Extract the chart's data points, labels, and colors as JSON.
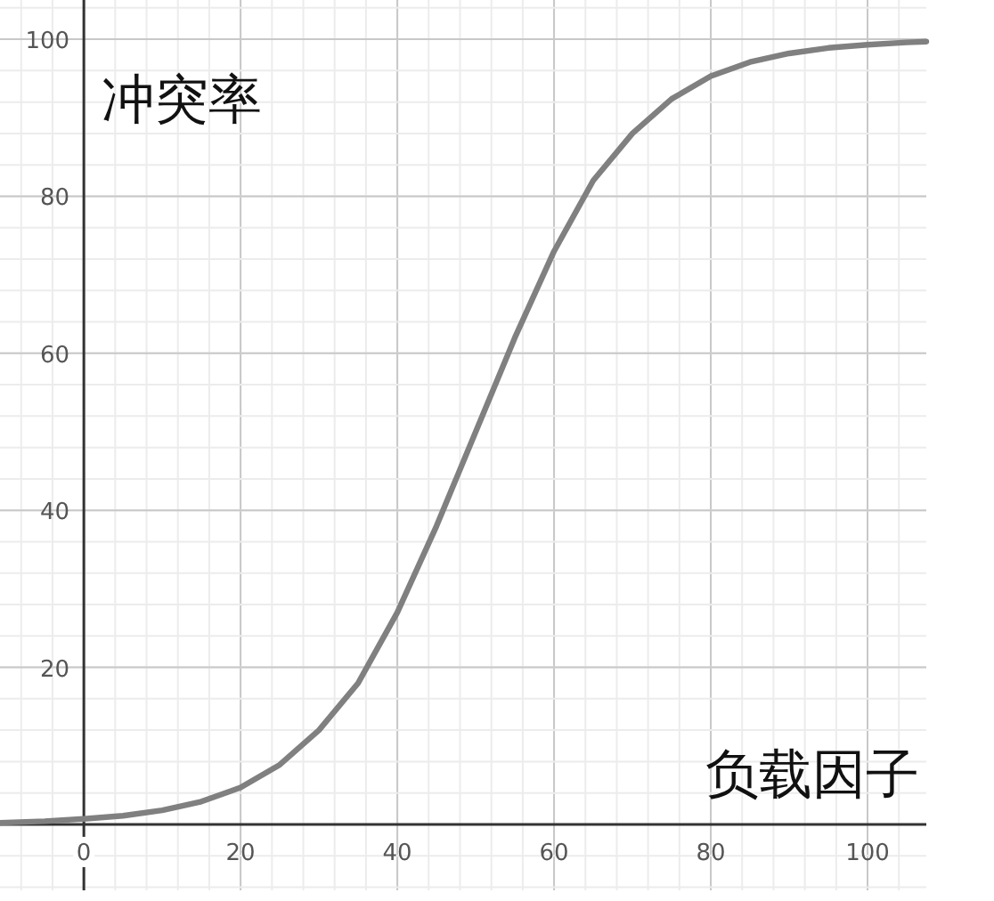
{
  "chart_data": {
    "type": "line",
    "xlabel": "负载因子",
    "ylabel": "冲突率",
    "xlim": [
      -10.7,
      107.5
    ],
    "ylim": [
      -8.4,
      105
    ],
    "xticks": [
      0,
      20,
      40,
      60,
      80,
      100
    ],
    "yticks": [
      20,
      40,
      60,
      80,
      100
    ],
    "grid": true,
    "series": [
      {
        "color": "#808080",
        "x": [
          -10.7,
          -5,
          0,
          5,
          10,
          15,
          20,
          25,
          30,
          35,
          40,
          45,
          50,
          55,
          60,
          65,
          70,
          75,
          80,
          85,
          90,
          95,
          100,
          105,
          107.5
        ],
        "values": [
          0.2,
          0.4,
          0.7,
          1.1,
          1.8,
          2.9,
          4.7,
          7.6,
          12,
          18,
          27,
          38,
          50,
          62,
          73,
          82,
          88,
          92.4,
          95.3,
          97.1,
          98.2,
          98.9,
          99.3,
          99.6,
          99.7
        ]
      }
    ]
  }
}
